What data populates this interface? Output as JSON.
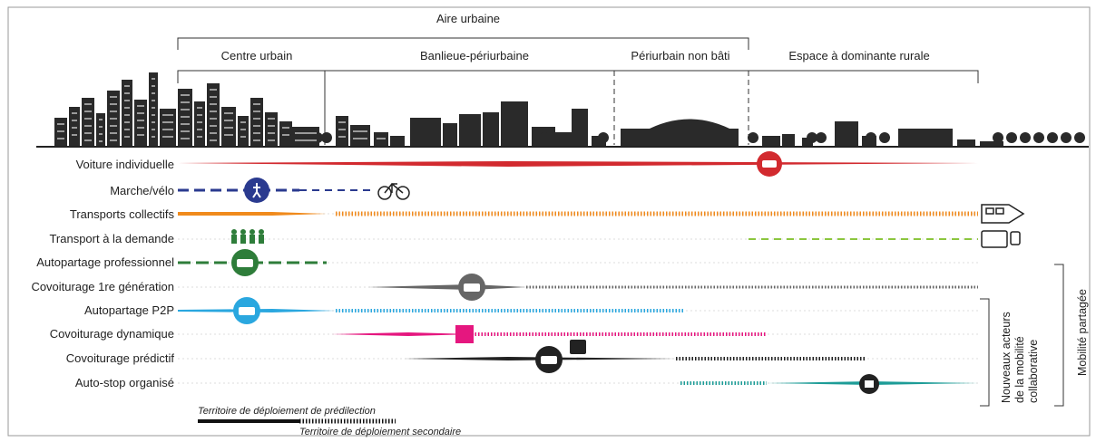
{
  "zones": {
    "aire_urbaine": "Aire urbaine",
    "centre_urbain": "Centre urbain",
    "banlieue": "Banlieue-périurbaine",
    "periurbain": "Périurbain non bâti",
    "rural": "Espace à dominante rurale"
  },
  "modes": [
    {
      "label": "Voiture individuelle",
      "color": "#d22a2f"
    },
    {
      "label": "Marche/vélo",
      "color": "#2a3a8f"
    },
    {
      "label": "Transports collectifs",
      "color": "#f08a1c"
    },
    {
      "label": "Transport à la demande",
      "color": "#8cc63f"
    },
    {
      "label": "Autopartage professionnel",
      "color": "#2e7d3a"
    },
    {
      "label": "Covoiturage 1re génération",
      "color": "#666666"
    },
    {
      "label": "Autopartage P2P",
      "color": "#2aa7df"
    },
    {
      "label": "Covoiturage dynamique",
      "color": "#e5177f"
    },
    {
      "label": "Covoiturage prédictif",
      "color": "#222222"
    },
    {
      "label": "Auto-stop organisé",
      "color": "#1d9c97"
    }
  ],
  "legend": {
    "primary": "Territoire de déploiement de prédilection",
    "secondary": "Territoire de déploiement secondaire"
  },
  "groups": {
    "nouveaux": [
      "Nouveaux acteurs",
      "de la mobilité",
      "collaborative"
    ],
    "partagee": "Mobilité partagée"
  }
}
